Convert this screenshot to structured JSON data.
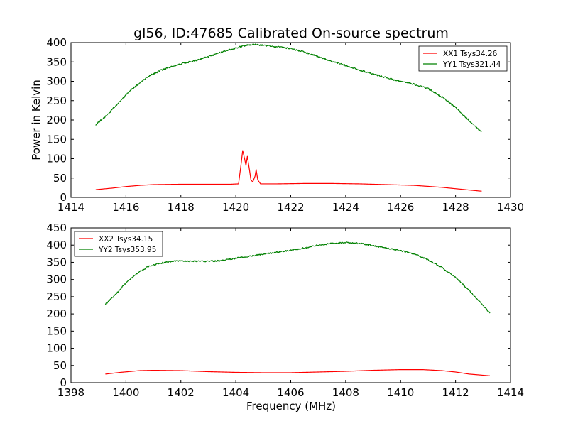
{
  "figure": {
    "title": "gl56, ID:47685 Calibrated On-source spectrum",
    "xlabel": "Frequency (MHz)",
    "ylabel": "Power in Kelvin"
  },
  "colors": {
    "XX": "#ff0000",
    "YY": "#008000",
    "axes": "#000000",
    "background": "#ffffff"
  },
  "chart_data": [
    {
      "type": "line",
      "title": "gl56, ID:47685 Calibrated On-source spectrum",
      "ylabel": "Power in Kelvin",
      "xlabel": "",
      "xlim": [
        1414,
        1430
      ],
      "ylim": [
        0,
        400
      ],
      "xticks": [
        "1414",
        "1416",
        "1418",
        "1420",
        "1422",
        "1424",
        "1426",
        "1428",
        "1430"
      ],
      "yticks": [
        "0",
        "50",
        "100",
        "150",
        "200",
        "250",
        "300",
        "350",
        "400"
      ],
      "grid": false,
      "legend": "top-right",
      "series": [
        {
          "name": "XX1 Tsys34.26",
          "color": "#ff0000",
          "noise": 0,
          "points": [
            [
              1414.9,
              20
            ],
            [
              1415.5,
              24
            ],
            [
              1416.0,
              28
            ],
            [
              1416.5,
              31
            ],
            [
              1417.0,
              33
            ],
            [
              1418.0,
              34
            ],
            [
              1419.0,
              34
            ],
            [
              1419.8,
              34
            ],
            [
              1420.1,
              35
            ],
            [
              1420.2,
              90
            ],
            [
              1420.25,
              121
            ],
            [
              1420.32,
              100
            ],
            [
              1420.37,
              82
            ],
            [
              1420.42,
              106
            ],
            [
              1420.5,
              70
            ],
            [
              1420.55,
              45
            ],
            [
              1420.62,
              40
            ],
            [
              1420.7,
              55
            ],
            [
              1420.74,
              72
            ],
            [
              1420.8,
              45
            ],
            [
              1420.9,
              35
            ],
            [
              1421.5,
              35
            ],
            [
              1422.5,
              36
            ],
            [
              1423.5,
              36
            ],
            [
              1424.5,
              35
            ],
            [
              1425.5,
              33
            ],
            [
              1426.5,
              31
            ],
            [
              1427.5,
              26
            ],
            [
              1428.5,
              19
            ],
            [
              1428.95,
              16
            ]
          ]
        },
        {
          "name": "YY1 Tsys321.44",
          "color": "#008000",
          "noise": 2,
          "points": [
            [
              1414.9,
              188
            ],
            [
              1415.3,
              212
            ],
            [
              1415.8,
              250
            ],
            [
              1416.3,
              285
            ],
            [
              1416.8,
              312
            ],
            [
              1417.2,
              326
            ],
            [
              1417.6,
              337
            ],
            [
              1418.0,
              345
            ],
            [
              1418.5,
              353
            ],
            [
              1419.0,
              364
            ],
            [
              1419.5,
              376
            ],
            [
              1420.0,
              386
            ],
            [
              1420.3,
              392
            ],
            [
              1420.6,
              395
            ],
            [
              1421.0,
              393
            ],
            [
              1421.5,
              389
            ],
            [
              1422.0,
              385
            ],
            [
              1422.5,
              375
            ],
            [
              1423.0,
              364
            ],
            [
              1423.5,
              352
            ],
            [
              1424.0,
              341
            ],
            [
              1424.5,
              329
            ],
            [
              1425.0,
              319
            ],
            [
              1425.5,
              309
            ],
            [
              1426.0,
              299
            ],
            [
              1426.5,
              292
            ],
            [
              1427.0,
              281
            ],
            [
              1427.5,
              260
            ],
            [
              1428.0,
              232
            ],
            [
              1428.5,
              198
            ],
            [
              1428.95,
              168
            ]
          ]
        }
      ]
    },
    {
      "type": "line",
      "title": "",
      "xlabel": "Frequency (MHz)",
      "ylabel": "",
      "xlim": [
        1398,
        1414
      ],
      "ylim": [
        0,
        450
      ],
      "xticks": [
        "1398",
        "1400",
        "1402",
        "1404",
        "1406",
        "1408",
        "1410",
        "1412",
        "1414"
      ],
      "yticks": [
        "0",
        "50",
        "100",
        "150",
        "200",
        "250",
        "300",
        "350",
        "400",
        "450"
      ],
      "grid": false,
      "legend": "top-left",
      "series": [
        {
          "name": "XX2 Tsys34.15",
          "color": "#ff0000",
          "noise": 0,
          "points": [
            [
              1399.25,
              25
            ],
            [
              1399.8,
              30
            ],
            [
              1400.5,
              35
            ],
            [
              1401.0,
              36
            ],
            [
              1402.0,
              35
            ],
            [
              1403.0,
              32
            ],
            [
              1404.0,
              30
            ],
            [
              1405.0,
              29
            ],
            [
              1406.0,
              29
            ],
            [
              1407.0,
              31
            ],
            [
              1408.0,
              33
            ],
            [
              1409.0,
              36
            ],
            [
              1410.0,
              38
            ],
            [
              1410.8,
              38
            ],
            [
              1411.5,
              35
            ],
            [
              1412.0,
              31
            ],
            [
              1412.5,
              25
            ],
            [
              1413.25,
              20
            ]
          ]
        },
        {
          "name": "YY2 Tsys353.95",
          "color": "#008000",
          "noise": 2,
          "points": [
            [
              1399.25,
              228
            ],
            [
              1399.6,
              255
            ],
            [
              1400.0,
              290
            ],
            [
              1400.4,
              318
            ],
            [
              1400.8,
              337
            ],
            [
              1401.2,
              347
            ],
            [
              1401.6,
              352
            ],
            [
              1402.0,
              354
            ],
            [
              1402.5,
              353
            ],
            [
              1403.0,
              353
            ],
            [
              1403.5,
              355
            ],
            [
              1404.0,
              362
            ],
            [
              1404.5,
              368
            ],
            [
              1405.0,
              374
            ],
            [
              1405.5,
              379
            ],
            [
              1406.0,
              385
            ],
            [
              1406.5,
              392
            ],
            [
              1407.0,
              400
            ],
            [
              1407.5,
              405
            ],
            [
              1408.0,
              408
            ],
            [
              1408.5,
              405
            ],
            [
              1409.0,
              399
            ],
            [
              1409.5,
              391
            ],
            [
              1410.0,
              384
            ],
            [
              1410.5,
              374
            ],
            [
              1411.0,
              357
            ],
            [
              1411.5,
              335
            ],
            [
              1412.0,
              306
            ],
            [
              1412.5,
              268
            ],
            [
              1413.0,
              224
            ],
            [
              1413.25,
              202
            ]
          ]
        }
      ]
    }
  ]
}
